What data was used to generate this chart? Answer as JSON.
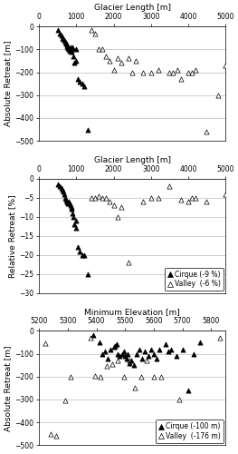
{
  "panel1": {
    "title": "Glacier Length [m]",
    "ylabel": "Absolute Retreat [m]",
    "xlim": [
      0,
      5000
    ],
    "ylim": [
      -500,
      0
    ],
    "xticks": [
      0,
      1000,
      2000,
      3000,
      4000,
      5000
    ],
    "yticks": [
      0,
      -100,
      -200,
      -300,
      -400,
      -500
    ],
    "cirque_x": [
      500,
      550,
      600,
      620,
      650,
      670,
      700,
      720,
      730,
      750,
      760,
      770,
      780,
      800,
      810,
      820,
      840,
      850,
      860,
      870,
      880,
      900,
      920,
      950,
      980,
      1000,
      1050,
      1100,
      1150,
      1200,
      1300
    ],
    "cirque_y": [
      -15,
      -30,
      -40,
      -50,
      -55,
      -60,
      -65,
      -70,
      -75,
      -80,
      -85,
      -90,
      -95,
      -100,
      -105,
      -100,
      -95,
      -90,
      -100,
      -110,
      -100,
      -90,
      -130,
      -160,
      -150,
      -100,
      -230,
      -240,
      -250,
      -260,
      -450
    ],
    "valley_x": [
      1400,
      1500,
      1600,
      1700,
      1800,
      1900,
      2000,
      2100,
      2200,
      2400,
      2500,
      2600,
      2800,
      3000,
      3200,
      3500,
      3600,
      3700,
      3800,
      4000,
      4100,
      4200,
      4500,
      4800,
      5000
    ],
    "valley_y": [
      -15,
      -30,
      -100,
      -100,
      -130,
      -150,
      -190,
      -140,
      -160,
      -140,
      -200,
      -150,
      -200,
      -200,
      -190,
      -200,
      -200,
      -190,
      -230,
      -200,
      -200,
      -190,
      -460,
      -300,
      -170
    ]
  },
  "panel2": {
    "title": "Glacier Length [m]",
    "ylabel": "Relative Retreat [%]",
    "xlim": [
      0,
      5000
    ],
    "ylim": [
      -30,
      0
    ],
    "xticks": [
      0,
      1000,
      2000,
      3000,
      4000,
      5000
    ],
    "yticks": [
      0,
      -5,
      -10,
      -15,
      -20,
      -25,
      -30
    ],
    "cirque_x": [
      500,
      550,
      600,
      620,
      650,
      670,
      700,
      720,
      740,
      760,
      780,
      800,
      820,
      840,
      860,
      880,
      900,
      920,
      950,
      980,
      1000,
      1050,
      1100,
      1150,
      1200,
      1300
    ],
    "cirque_y": [
      -1.5,
      -2.0,
      -2.5,
      -3.0,
      -3.5,
      -4.0,
      -5.0,
      -5.5,
      -6.0,
      -6.0,
      -6.5,
      -6.0,
      -6.5,
      -7.0,
      -7.5,
      -8.0,
      -9.0,
      -10.0,
      -12.0,
      -13.0,
      -11.0,
      -18.0,
      -19.0,
      -20.0,
      -20.0,
      -25.0
    ],
    "valley_x": [
      1400,
      1500,
      1600,
      1700,
      1800,
      1900,
      2000,
      2100,
      2200,
      2400,
      2800,
      3000,
      3200,
      3500,
      3800,
      4000,
      4100,
      4200,
      4500,
      5000
    ],
    "valley_y": [
      -5.0,
      -5.0,
      -4.5,
      -5.0,
      -5.0,
      -6.0,
      -7.0,
      -10.0,
      -7.5,
      -22.0,
      -6.0,
      -5.0,
      -5.0,
      -2.0,
      -5.5,
      -6.0,
      -5.0,
      -5.0,
      -6.0,
      -4.0
    ],
    "legend_labels": [
      "Cirque (-9 %)",
      "Valley  (-6 %)"
    ]
  },
  "panel3": {
    "title": "Minimum Elevation [m]",
    "ylabel": "Absolute Retreat [m]",
    "xlim": [
      5200,
      5850
    ],
    "ylim": [
      -500,
      0
    ],
    "xticks": [
      5200,
      5300,
      5400,
      5500,
      5600,
      5700,
      5800
    ],
    "yticks": [
      0,
      -100,
      -200,
      -300,
      -400,
      -500
    ],
    "cirque_x": [
      5390,
      5410,
      5420,
      5430,
      5440,
      5450,
      5460,
      5465,
      5470,
      5475,
      5480,
      5490,
      5495,
      5500,
      5505,
      5510,
      5515,
      5520,
      5530,
      5540,
      5550,
      5560,
      5570,
      5580,
      5590,
      5600,
      5610,
      5620,
      5640,
      5650,
      5660,
      5680,
      5700,
      5720,
      5740,
      5760
    ],
    "cirque_y": [
      -20,
      -50,
      -100,
      -90,
      -120,
      -80,
      -70,
      -65,
      -60,
      -100,
      -110,
      -100,
      -90,
      -110,
      -120,
      -100,
      -140,
      -130,
      -150,
      -100,
      -80,
      -120,
      -90,
      -110,
      -80,
      -100,
      -120,
      -80,
      -60,
      -90,
      -80,
      -110,
      -80,
      -260,
      -100,
      -50
    ],
    "valley_x": [
      5220,
      5240,
      5260,
      5290,
      5310,
      5380,
      5395,
      5415,
      5435,
      5455,
      5475,
      5495,
      5515,
      5535,
      5555,
      5575,
      5600,
      5625,
      5690,
      5830
    ],
    "valley_y": [
      -55,
      -450,
      -460,
      -305,
      -200,
      -30,
      -195,
      -200,
      -155,
      -145,
      -130,
      -200,
      -130,
      -250,
      -200,
      -130,
      -200,
      -200,
      -300,
      -30
    ],
    "legend_labels": [
      "Cirque (-100 m)",
      "Valley  (-176 m)"
    ]
  },
  "marker_size": 14,
  "cirque_color": "black",
  "valley_color": "white",
  "edge_color": "black",
  "bg_color": "white",
  "grid_color": "#bbbbbb",
  "font_size": 6.5,
  "tick_font_size": 5.5
}
